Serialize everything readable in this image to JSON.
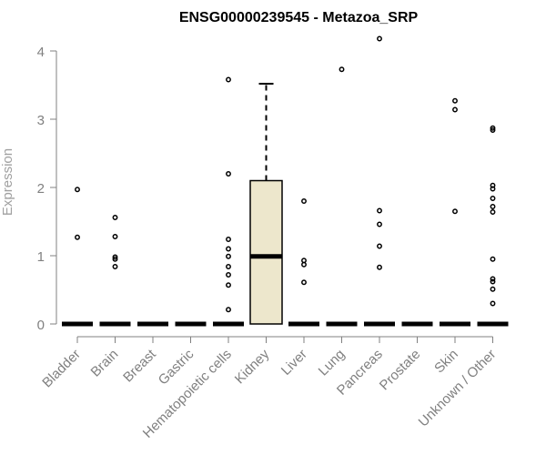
{
  "chart_data": {
    "type": "box",
    "title": "ENSG00000239545 - Metazoa_SRP",
    "xlabel": "",
    "ylabel": "Expression",
    "ylim": [
      0,
      4.25
    ],
    "yticks": [
      0,
      1,
      2,
      3,
      4
    ],
    "categories": [
      "Bladder",
      "Brain",
      "Breast",
      "Gastric",
      "Hematopoietic cells",
      "Kidney",
      "Liver",
      "Lung",
      "Pancreas",
      "Prostate",
      "Skin",
      "Unknown / Other"
    ],
    "boxes": [
      {
        "category": "Bladder",
        "min": 0,
        "q1": 0,
        "median": 0,
        "q3": 0,
        "max": 0,
        "outliers": [
          1.97,
          1.27
        ]
      },
      {
        "category": "Brain",
        "min": 0,
        "q1": 0,
        "median": 0,
        "q3": 0,
        "max": 0,
        "outliers": [
          1.56,
          1.28,
          0.98,
          0.95,
          0.84
        ]
      },
      {
        "category": "Breast",
        "min": 0,
        "q1": 0,
        "median": 0,
        "q3": 0,
        "max": 0,
        "outliers": []
      },
      {
        "category": "Gastric",
        "min": 0,
        "q1": 0,
        "median": 0,
        "q3": 0,
        "max": 0,
        "outliers": []
      },
      {
        "category": "Hematopoietic cells",
        "min": 0,
        "q1": 0,
        "median": 0,
        "q3": 0,
        "max": 0,
        "outliers": [
          3.58,
          2.2,
          1.24,
          1.1,
          0.99,
          0.84,
          0.72,
          0.57,
          0.21
        ]
      },
      {
        "category": "Kidney",
        "min": 0,
        "q1": 0,
        "median": 0.99,
        "q3": 2.1,
        "max": 3.52,
        "outliers": []
      },
      {
        "category": "Liver",
        "min": 0,
        "q1": 0,
        "median": 0,
        "q3": 0,
        "max": 0,
        "outliers": [
          1.8,
          0.93,
          0.87,
          0.61
        ]
      },
      {
        "category": "Lung",
        "min": 0,
        "q1": 0,
        "median": 0,
        "q3": 0,
        "max": 0,
        "outliers": [
          3.73
        ]
      },
      {
        "category": "Pancreas",
        "min": 0,
        "q1": 0,
        "median": 0,
        "q3": 0,
        "max": 0,
        "outliers": [
          4.18,
          1.66,
          1.46,
          1.14,
          0.83
        ]
      },
      {
        "category": "Prostate",
        "min": 0,
        "q1": 0,
        "median": 0,
        "q3": 0,
        "max": 0,
        "outliers": []
      },
      {
        "category": "Skin",
        "min": 0,
        "q1": 0,
        "median": 0,
        "q3": 0,
        "max": 0,
        "outliers": [
          3.27,
          3.14,
          1.65
        ]
      },
      {
        "category": "Unknown / Other",
        "min": 0,
        "q1": 0,
        "median": 0,
        "q3": 0,
        "max": 0,
        "outliers": [
          2.87,
          2.84,
          2.03,
          1.98,
          1.84,
          1.72,
          1.64,
          0.95,
          0.66,
          0.62,
          0.51,
          0.3
        ]
      }
    ],
    "box_fill": "#ede7cc",
    "grid": false,
    "legend": "none"
  }
}
